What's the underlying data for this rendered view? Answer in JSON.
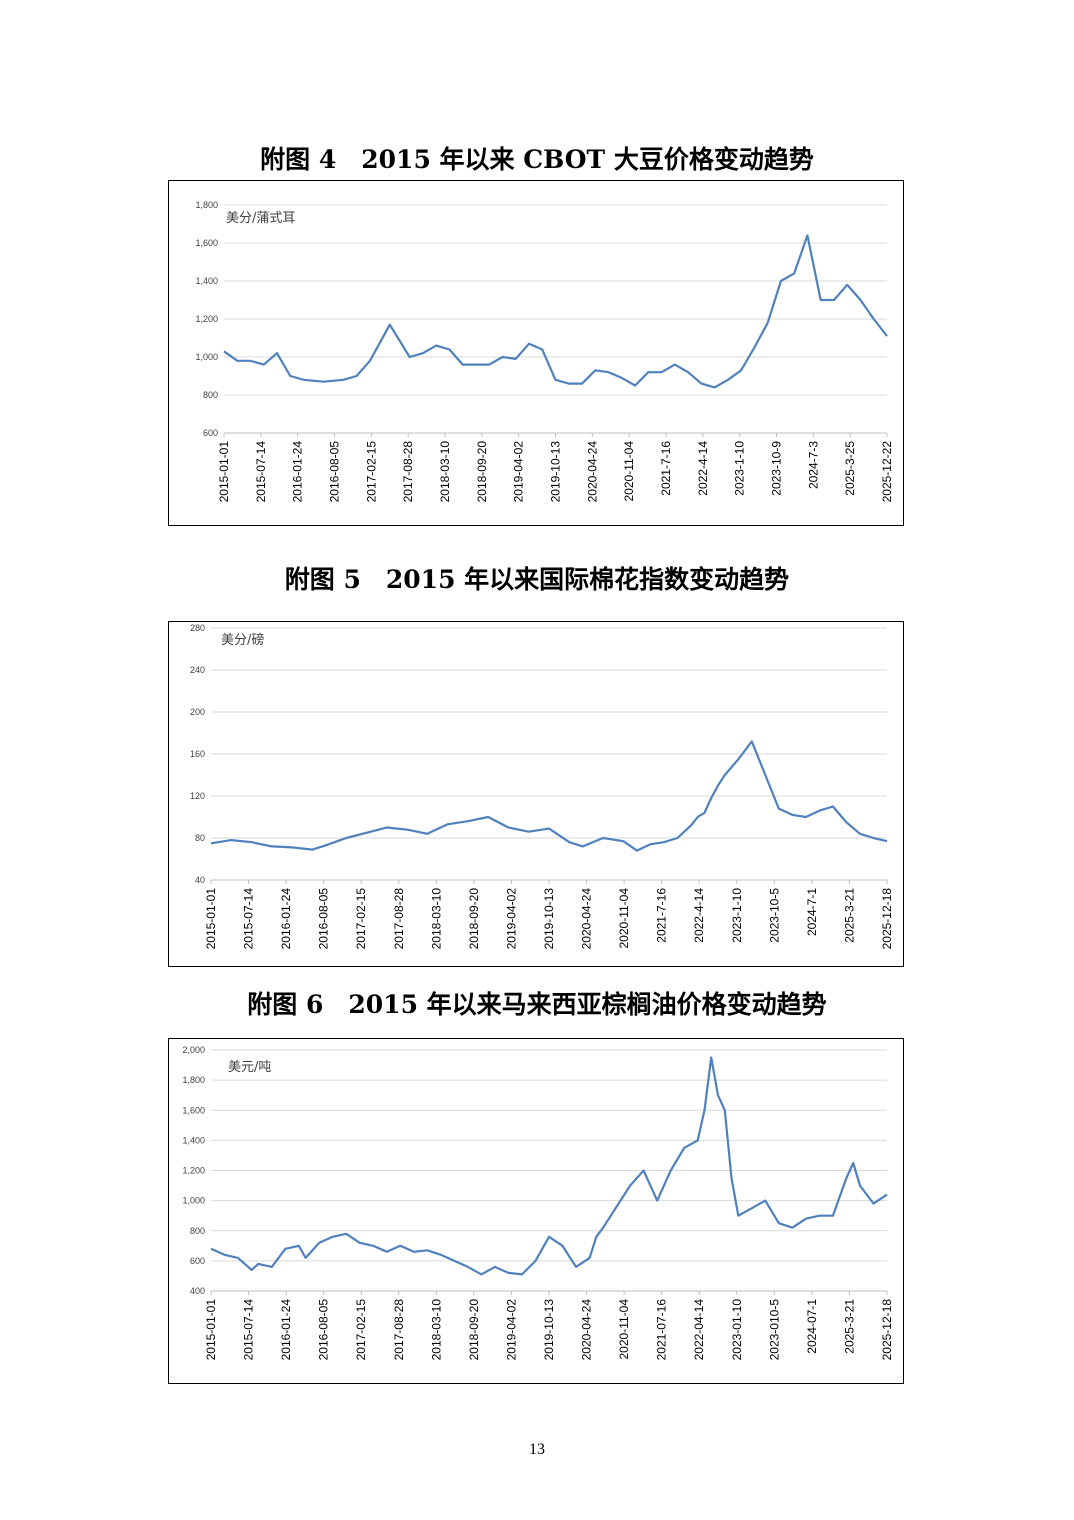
{
  "figures": [
    {
      "title": "附图 4　2015 年以来 CBOT 大豆价格变动趋势",
      "chart": {
        "type": "line",
        "unit_label": "美分/蒲式耳",
        "ylim": [
          600,
          1800
        ],
        "yticks": [
          "600",
          "800",
          "1,000",
          "1,200",
          "1,400",
          "1,600",
          "1,800"
        ],
        "ytick_values": [
          600,
          800,
          1000,
          1200,
          1400,
          1600,
          1800
        ],
        "xticks": [
          "2015-01-01",
          "2015-07-14",
          "2016-01-24",
          "2016-08-05",
          "2017-02-15",
          "2017-08-28",
          "2018-03-10",
          "2018-09-20",
          "2019-04-02",
          "2019-10-13",
          "2020-04-24",
          "2020-11-04",
          "2021-7-16",
          "2022-4-14",
          "2023-1-10",
          "2023-10-9",
          "2024-7-3",
          "2025-3-25",
          "2025-12-22"
        ],
        "grid": true,
        "line_color": "#4f81bd",
        "series": [
          {
            "x": [
              0,
              0.02,
              0.04,
              0.06,
              0.08,
              0.1,
              0.12,
              0.15,
              0.18,
              0.2,
              0.22,
              0.25,
              0.28,
              0.3,
              0.32,
              0.34,
              0.36,
              0.38,
              0.4,
              0.42,
              0.44,
              0.46,
              0.48,
              0.5,
              0.52,
              0.54,
              0.56,
              0.58,
              0.6,
              0.62,
              0.64,
              0.66,
              0.68,
              0.7,
              0.72,
              0.74,
              0.76,
              0.78,
              0.8,
              0.82,
              0.84,
              0.86,
              0.88,
              0.9,
              0.92,
              0.94,
              0.96,
              0.98,
              1
            ],
            "values": [
              1030,
              980,
              980,
              960,
              1020,
              900,
              880,
              870,
              880,
              900,
              980,
              1170,
              1000,
              1020,
              1060,
              1040,
              960,
              960,
              960,
              1000,
              990,
              1070,
              1040,
              880,
              860,
              860,
              930,
              920,
              890,
              850,
              920,
              920,
              960,
              920,
              860,
              840,
              880,
              930,
              1050,
              1180,
              1400,
              1440,
              1640,
              1300,
              1300,
              1380,
              1300,
              1200,
              1110
            ]
          }
        ]
      }
    },
    {
      "title": "附图 5　2015 年以来国际棉花指数变动趋势",
      "chart": {
        "type": "line",
        "unit_label": "美分/磅",
        "ylim": [
          40,
          280
        ],
        "yticks": [
          "40",
          "80",
          "120",
          "160",
          "200",
          "240",
          "280"
        ],
        "ytick_values": [
          40,
          80,
          120,
          160,
          200,
          240,
          280
        ],
        "xticks": [
          "2015-01-01",
          "2015-07-14",
          "2016-01-24",
          "2016-08-05",
          "2017-02-15",
          "2017-08-28",
          "2018-03-10",
          "2018-09-20",
          "2019-04-02",
          "2019-10-13",
          "2020-04-24",
          "2020-11-04",
          "2021-7-16",
          "2022-4-14",
          "2023-1-10",
          "2023-10-5",
          "2024-7-1",
          "2025-3-21",
          "2025-12-18"
        ],
        "grid": true,
        "line_color": "#4f81bd",
        "series": [
          {
            "x": [
              0,
              0.03,
              0.06,
              0.09,
              0.12,
              0.15,
              0.17,
              0.2,
              0.23,
              0.26,
              0.29,
              0.32,
              0.35,
              0.38,
              0.41,
              0.44,
              0.47,
              0.5,
              0.53,
              0.55,
              0.58,
              0.61,
              0.63,
              0.65,
              0.67,
              0.69,
              0.71,
              0.72,
              0.73,
              0.74,
              0.75,
              0.76,
              0.78,
              0.8,
              0.82,
              0.84,
              0.86,
              0.88,
              0.9,
              0.92,
              0.94,
              0.96,
              0.98,
              1
            ],
            "values": [
              75,
              78,
              76,
              72,
              71,
              69,
              73,
              80,
              85,
              90,
              88,
              84,
              93,
              96,
              100,
              90,
              86,
              89,
              76,
              72,
              80,
              77,
              68,
              74,
              76,
              80,
              92,
              100,
              104,
              118,
              130,
              140,
              155,
              172,
              140,
              108,
              102,
              100,
              106,
              110,
              95,
              84,
              80,
              77
            ]
          }
        ]
      }
    },
    {
      "title": "附图 6　2015 年以来马来西亚棕榈油价格变动趋势",
      "chart": {
        "type": "line",
        "unit_label": "美元/吨",
        "ylim": [
          400,
          2000
        ],
        "yticks": [
          "400",
          "600",
          "800",
          "1,000",
          "1,200",
          "1,400",
          "1,600",
          "1,800",
          "2,000"
        ],
        "ytick_values": [
          400,
          600,
          800,
          1000,
          1200,
          1400,
          1600,
          1800,
          2000
        ],
        "xticks": [
          "2015-01-01",
          "2015-07-14",
          "2016-01-24",
          "2016-08-05",
          "2017-02-15",
          "2017-08-28",
          "2018-03-10",
          "2018-09-20",
          "2019-04-02",
          "2019-10-13",
          "2020-04-24",
          "2020-11-04",
          "2021-07-16",
          "2022-04-14",
          "2023-01-10",
          "2023-010-5",
          "2024-07-1",
          "2025-3-21",
          "2025-12-18"
        ],
        "grid": true,
        "line_color": "#4f81bd",
        "series": [
          {
            "x": [
              0,
              0.02,
              0.04,
              0.06,
              0.07,
              0.09,
              0.11,
              0.13,
              0.14,
              0.16,
              0.18,
              0.2,
              0.22,
              0.24,
              0.26,
              0.28,
              0.3,
              0.32,
              0.34,
              0.36,
              0.38,
              0.4,
              0.42,
              0.44,
              0.46,
              0.48,
              0.5,
              0.52,
              0.54,
              0.56,
              0.57,
              0.58,
              0.6,
              0.62,
              0.64,
              0.66,
              0.68,
              0.7,
              0.72,
              0.73,
              0.74,
              0.75,
              0.76,
              0.77,
              0.78,
              0.8,
              0.82,
              0.84,
              0.86,
              0.88,
              0.9,
              0.92,
              0.94,
              0.95,
              0.96,
              0.98,
              1
            ],
            "values": [
              680,
              640,
              620,
              540,
              580,
              560,
              680,
              700,
              620,
              720,
              760,
              780,
              720,
              700,
              660,
              700,
              660,
              670,
              640,
              600,
              560,
              510,
              560,
              520,
              510,
              600,
              760,
              700,
              560,
              620,
              760,
              820,
              960,
              1100,
              1200,
              1000,
              1200,
              1350,
              1400,
              1600,
              1950,
              1700,
              1600,
              1150,
              900,
              950,
              1000,
              850,
              820,
              880,
              900,
              900,
              1150,
              1250,
              1100,
              980,
              1040
            ]
          }
        ]
      }
    }
  ],
  "page_number": "13"
}
